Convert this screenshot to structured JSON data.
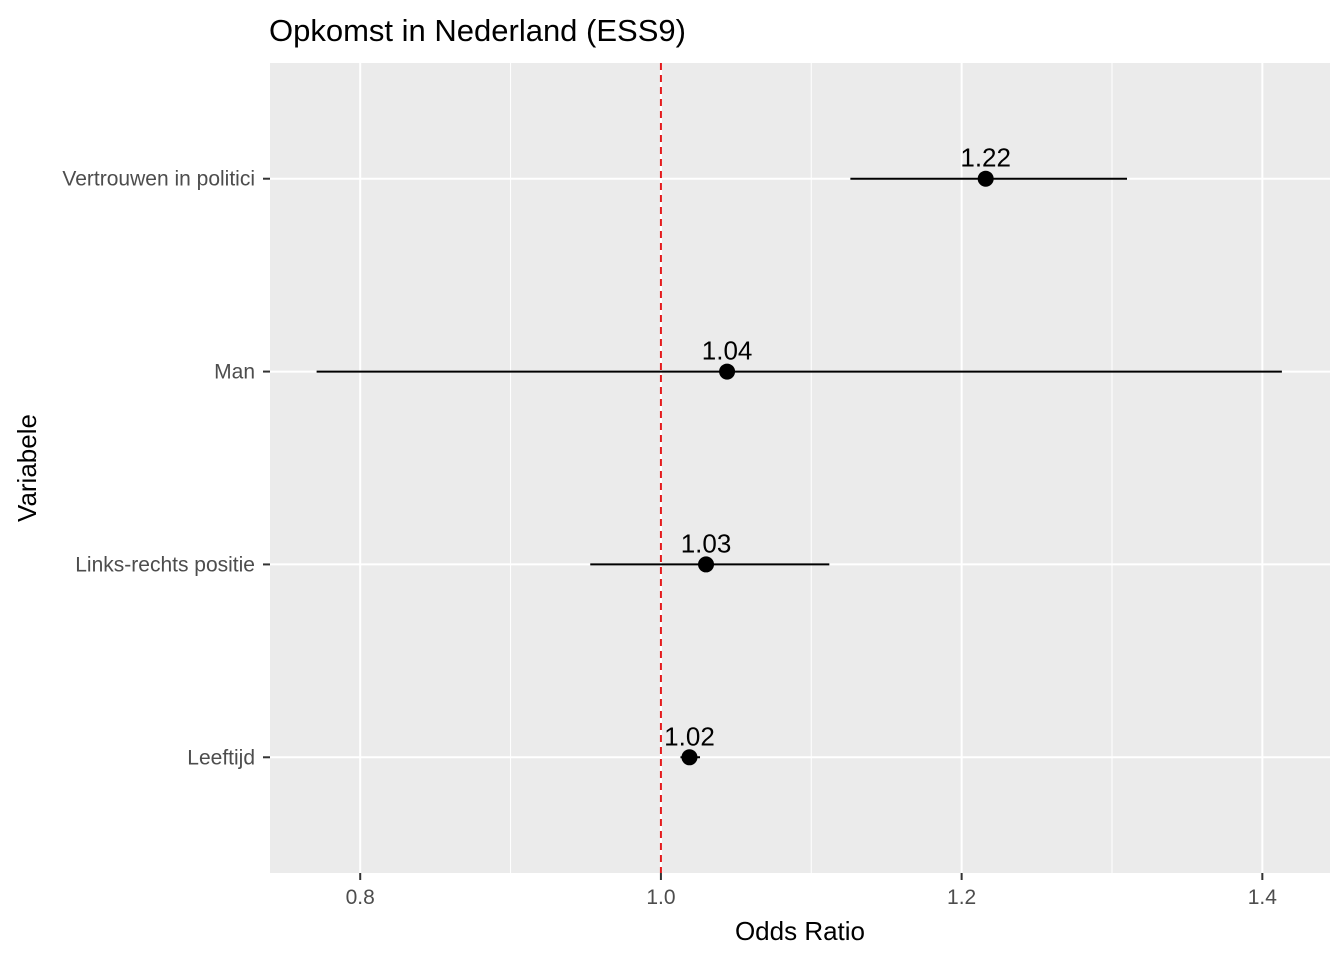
{
  "chart_data": {
    "type": "scatter",
    "subtype": "forest-plot-with-error-bars",
    "title": "Opkomst in Nederland (ESS9)",
    "xlabel": "Odds Ratio",
    "ylabel": "Variabele",
    "xlim": [
      0.74,
      1.445
    ],
    "x_ticks": [
      0.8,
      1.0,
      1.2,
      1.4
    ],
    "x_tick_labels": [
      "0.8",
      "1.0",
      "1.2",
      "1.4"
    ],
    "categories": [
      "Vertrouwen in politici",
      "Man",
      "Links-rechts positie",
      "Leeftijd"
    ],
    "estimates": [
      1.216,
      1.044,
      1.03,
      1.019
    ],
    "ci_lower": [
      1.126,
      0.771,
      0.953,
      1.013
    ],
    "ci_upper": [
      1.31,
      1.413,
      1.112,
      1.026
    ],
    "data_labels": [
      "1.22",
      "1.04",
      "1.03",
      "1.02"
    ],
    "reference_line": {
      "x": 1.0,
      "style": "dashed",
      "color": "#e41a1c"
    },
    "grid": true,
    "panel_background": "#ebebeb",
    "grid_color": "#ffffff",
    "point_color": "#000000"
  }
}
